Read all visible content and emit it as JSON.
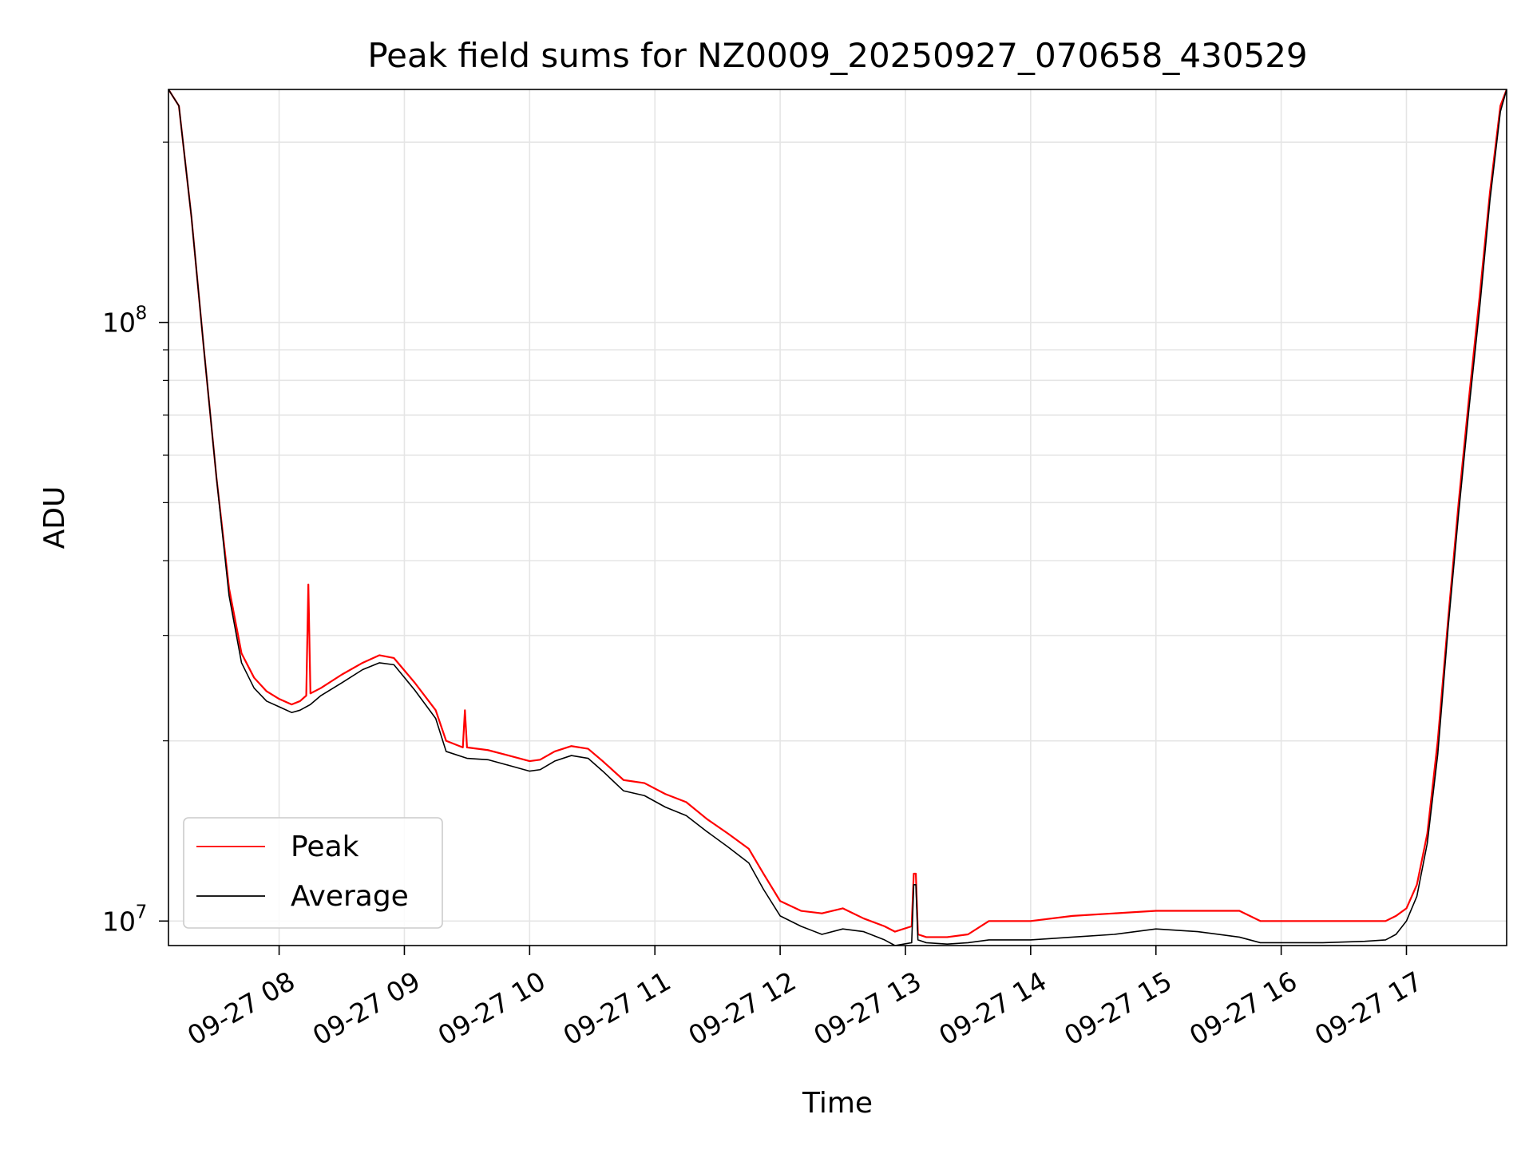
{
  "chart_data": {
    "type": "line",
    "title": "Peak field sums for NZ0009_20250927_070658_430529",
    "xlabel": "Time",
    "ylabel": "ADU",
    "y_scale": "log",
    "ylim": [
      9100000,
      245000000
    ],
    "xlim": [
      "09-27 07:07",
      "09-27 17:48"
    ],
    "grid": true,
    "legend_position": "lower-left",
    "x_ticks": [
      {
        "t": "09-27 08:00",
        "label": "09-27 08"
      },
      {
        "t": "09-27 09:00",
        "label": "09-27 09"
      },
      {
        "t": "09-27 10:00",
        "label": "09-27 10"
      },
      {
        "t": "09-27 11:00",
        "label": "09-27 11"
      },
      {
        "t": "09-27 12:00",
        "label": "09-27 12"
      },
      {
        "t": "09-27 13:00",
        "label": "09-27 13"
      },
      {
        "t": "09-27 14:00",
        "label": "09-27 14"
      },
      {
        "t": "09-27 15:00",
        "label": "09-27 15"
      },
      {
        "t": "09-27 16:00",
        "label": "09-27 16"
      },
      {
        "t": "09-27 17:00",
        "label": "09-27 17"
      }
    ],
    "y_major_ticks": [
      {
        "value": 10000000,
        "base": "10",
        "exp": "7"
      },
      {
        "value": 100000000,
        "base": "10",
        "exp": "8"
      }
    ],
    "y_minor_ticks": [
      20000000,
      30000000,
      40000000,
      50000000,
      60000000,
      70000000,
      80000000,
      90000000,
      200000000
    ],
    "series": [
      {
        "name": "Peak",
        "color": "#ff0000",
        "x": [
          "09-27 07:07",
          "09-27 07:12",
          "09-27 07:18",
          "09-27 07:24",
          "09-27 07:30",
          "09-27 07:36",
          "09-27 07:42",
          "09-27 07:48",
          "09-27 07:54",
          "09-27 08:00",
          "09-27 08:06",
          "09-27 08:10",
          "09-27 08:13",
          "09-27 08:14",
          "09-27 08:15",
          "09-27 08:20",
          "09-27 08:30",
          "09-27 08:40",
          "09-27 08:48",
          "09-27 08:55",
          "09-27 09:05",
          "09-27 09:15",
          "09-27 09:20",
          "09-27 09:28",
          "09-27 09:29",
          "09-27 09:30",
          "09-27 09:40",
          "09-27 09:50",
          "09-27 10:00",
          "09-27 10:05",
          "09-27 10:12",
          "09-27 10:20",
          "09-27 10:28",
          "09-27 10:35",
          "09-27 10:45",
          "09-27 10:55",
          "09-27 11:05",
          "09-27 11:15",
          "09-27 11:25",
          "09-27 11:35",
          "09-27 11:45",
          "09-27 11:52",
          "09-27 12:00",
          "09-27 12:10",
          "09-27 12:20",
          "09-27 12:30",
          "09-27 12:40",
          "09-27 12:50",
          "09-27 12:55",
          "09-27 13:03",
          "09-27 13:04",
          "09-27 13:05",
          "09-27 13:06",
          "09-27 13:10",
          "09-27 13:20",
          "09-27 13:30",
          "09-27 13:40",
          "09-27 14:00",
          "09-27 14:20",
          "09-27 14:40",
          "09-27 15:00",
          "09-27 15:20",
          "09-27 15:40",
          "09-27 15:50",
          "09-27 16:00",
          "09-27 16:20",
          "09-27 16:40",
          "09-27 16:50",
          "09-27 16:55",
          "09-27 17:00",
          "09-27 17:05",
          "09-27 17:10",
          "09-27 17:15",
          "09-27 17:20",
          "09-27 17:25",
          "09-27 17:30",
          "09-27 17:35",
          "09-27 17:40",
          "09-27 17:45",
          "09-27 17:48"
        ],
        "y": [
          245000000,
          230000000,
          150000000,
          90000000,
          55000000,
          36000000,
          28000000,
          25500000,
          24200000,
          23500000,
          23000000,
          23300000,
          23800000,
          36500000,
          24000000,
          24500000,
          25800000,
          27000000,
          27800000,
          27500000,
          25000000,
          22500000,
          20000000,
          19500000,
          22500000,
          19500000,
          19300000,
          18900000,
          18500000,
          18600000,
          19200000,
          19600000,
          19400000,
          18500000,
          17200000,
          17000000,
          16300000,
          15800000,
          14800000,
          14000000,
          13200000,
          12000000,
          10800000,
          10400000,
          10300000,
          10500000,
          10100000,
          9800000,
          9600000,
          9800000,
          12000000,
          12000000,
          9500000,
          9400000,
          9400000,
          9500000,
          10000000,
          10000000,
          10200000,
          10300000,
          10400000,
          10400000,
          10400000,
          10000000,
          10000000,
          10000000,
          10000000,
          10000000,
          10200000,
          10500000,
          11500000,
          14000000,
          20000000,
          32000000,
          50000000,
          75000000,
          110000000,
          165000000,
          230000000,
          245000000
        ]
      },
      {
        "name": "Average",
        "color": "#000000",
        "x": [
          "09-27 07:07",
          "09-27 07:12",
          "09-27 07:18",
          "09-27 07:24",
          "09-27 07:30",
          "09-27 07:36",
          "09-27 07:42",
          "09-27 07:48",
          "09-27 07:54",
          "09-27 08:00",
          "09-27 08:06",
          "09-27 08:10",
          "09-27 08:15",
          "09-27 08:20",
          "09-27 08:30",
          "09-27 08:40",
          "09-27 08:48",
          "09-27 08:55",
          "09-27 09:05",
          "09-27 09:15",
          "09-27 09:20",
          "09-27 09:30",
          "09-27 09:40",
          "09-27 09:50",
          "09-27 10:00",
          "09-27 10:05",
          "09-27 10:12",
          "09-27 10:20",
          "09-27 10:28",
          "09-27 10:35",
          "09-27 10:45",
          "09-27 10:55",
          "09-27 11:05",
          "09-27 11:15",
          "09-27 11:25",
          "09-27 11:35",
          "09-27 11:45",
          "09-27 11:52",
          "09-27 12:00",
          "09-27 12:10",
          "09-27 12:20",
          "09-27 12:30",
          "09-27 12:40",
          "09-27 12:50",
          "09-27 12:55",
          "09-27 13:03",
          "09-27 13:04",
          "09-27 13:05",
          "09-27 13:06",
          "09-27 13:10",
          "09-27 13:20",
          "09-27 13:30",
          "09-27 13:40",
          "09-27 14:00",
          "09-27 14:20",
          "09-27 14:40",
          "09-27 15:00",
          "09-27 15:20",
          "09-27 15:40",
          "09-27 15:50",
          "09-27 16:00",
          "09-27 16:20",
          "09-27 16:40",
          "09-27 16:50",
          "09-27 16:55",
          "09-27 17:00",
          "09-27 17:05",
          "09-27 17:10",
          "09-27 17:15",
          "09-27 17:20",
          "09-27 17:25",
          "09-27 17:30",
          "09-27 17:35",
          "09-27 17:40",
          "09-27 17:45",
          "09-27 17:48"
        ],
        "y": [
          245000000,
          230000000,
          150000000,
          90000000,
          55000000,
          35000000,
          27000000,
          24500000,
          23300000,
          22800000,
          22300000,
          22500000,
          23000000,
          23800000,
          25000000,
          26300000,
          27000000,
          26800000,
          24300000,
          21800000,
          19200000,
          18700000,
          18600000,
          18200000,
          17800000,
          17900000,
          18500000,
          18900000,
          18700000,
          17800000,
          16500000,
          16200000,
          15500000,
          15000000,
          14100000,
          13300000,
          12500000,
          11300000,
          10200000,
          9800000,
          9500000,
          9700000,
          9600000,
          9300000,
          9100000,
          9200000,
          11500000,
          11500000,
          9300000,
          9200000,
          9150000,
          9200000,
          9300000,
          9300000,
          9400000,
          9500000,
          9700000,
          9600000,
          9400000,
          9200000,
          9200000,
          9200000,
          9250000,
          9300000,
          9500000,
          10000000,
          11000000,
          13500000,
          19000000,
          31000000,
          48000000,
          72000000,
          105000000,
          160000000,
          225000000,
          245000000
        ]
      }
    ]
  }
}
